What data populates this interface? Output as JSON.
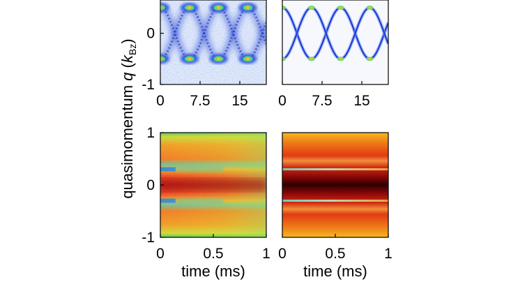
{
  "chart_data": [
    {
      "type": "heatmap",
      "panel": "top-left",
      "description_source": "experimental data",
      "x_ticks": [
        "0",
        "7.5",
        "15"
      ],
      "x_tick_values": [
        0,
        7.5,
        15
      ],
      "xlim": [
        0,
        20
      ],
      "y_ticks": [
        "0",
        "-1"
      ],
      "y_tick_values": [
        0,
        -1
      ],
      "ylim": [
        -1,
        0.65
      ],
      "colormap": "white-blue-green-yellow-red",
      "bright_spot_times": [
        0,
        5.5,
        11,
        16.5
      ]
    },
    {
      "type": "line",
      "panel": "top-right",
      "x_ticks": [
        "0",
        "7.5",
        "15"
      ],
      "x_tick_values": [
        0,
        7.5,
        15
      ],
      "xlim": [
        0,
        20
      ],
      "ylim": [
        -1,
        0.65
      ],
      "series": [
        {
          "amplitude": 0.5,
          "period_ms": 11,
          "phase": "cos"
        },
        {
          "amplitude": 0.5,
          "period_ms": 11,
          "phase": "-cos"
        }
      ]
    },
    {
      "type": "heatmap",
      "panel": "bottom-left",
      "x_ticks": [
        "0",
        "0.5",
        "1"
      ],
      "x_tick_values": [
        0,
        0.5,
        1
      ],
      "xlim": [
        0,
        1
      ],
      "y_ticks": [
        "1",
        "0",
        "-1"
      ],
      "y_tick_values": [
        1,
        0,
        -1
      ],
      "ylim": [
        -1,
        1
      ],
      "xlabel": "time (ms)",
      "colormap": "jet-like",
      "features_q": [
        0.3,
        -0.3
      ]
    },
    {
      "type": "heatmap",
      "panel": "bottom-right",
      "x_ticks": [
        "0",
        "0.5",
        "1"
      ],
      "x_tick_values": [
        0,
        0.5,
        1
      ],
      "xlim": [
        0,
        1
      ],
      "ylim": [
        -1,
        1
      ],
      "xlabel": "time (ms)",
      "colormap": "hot",
      "features_q": [
        0.3,
        -0.3
      ]
    }
  ],
  "shared_ylabel": {
    "main": "quasimomentum ",
    "q": "q",
    "open": " (",
    "k": "k",
    "sub": "Bz",
    "close": ")"
  },
  "colors": {
    "blue": "#1e3cd8",
    "green": "#6ddb3a",
    "red": "#e8321e",
    "dark_red": "#3a0000"
  }
}
